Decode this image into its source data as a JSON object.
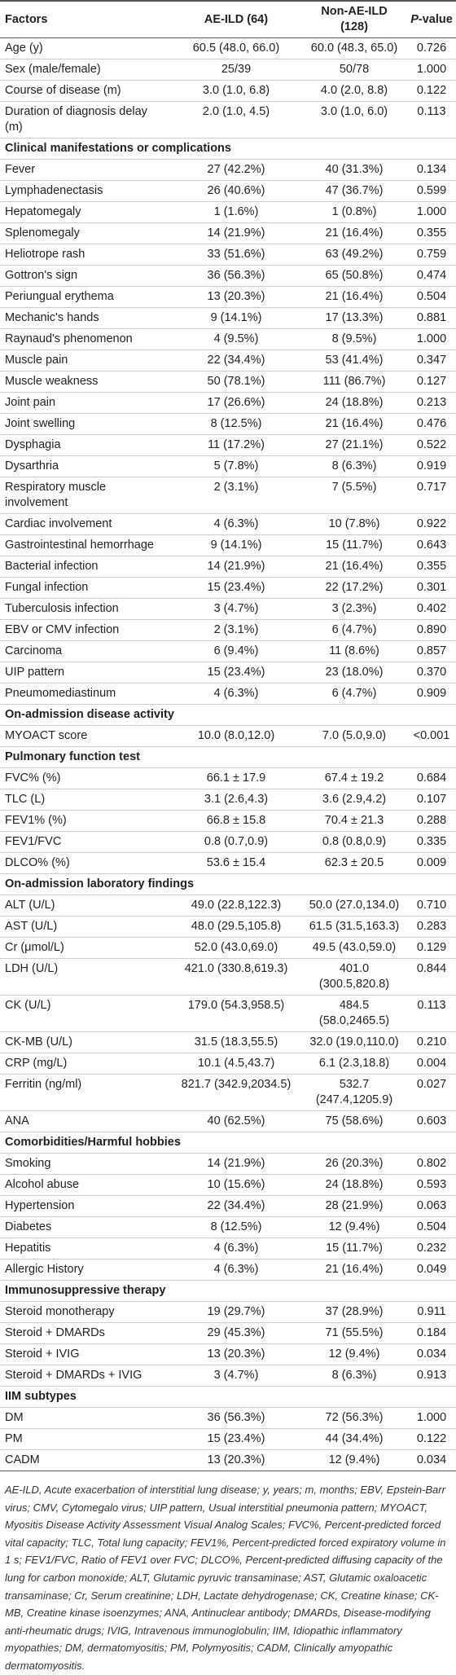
{
  "header": {
    "factors": "Factors",
    "ae": "AE-ILD (64)",
    "non_ae": "Non-AE-ILD (128)",
    "p": {
      "italic": "P",
      "rest": "-value"
    }
  },
  "sections": [
    {
      "title": null,
      "rows": [
        [
          "Age (y)",
          "60.5 (48.0, 66.0)",
          "60.0 (48.3, 65.0)",
          "0.726"
        ],
        [
          "Sex (male/female)",
          "25/39",
          "50/78",
          "1.000"
        ],
        [
          "Course of disease (m)",
          "3.0 (1.0, 6.8)",
          "4.0 (2.0, 8.8)",
          "0.122"
        ],
        [
          "Duration of diagnosis delay (m)",
          "2.0 (1.0, 4.5)",
          "3.0 (1.0, 6.0)",
          "0.113"
        ]
      ]
    },
    {
      "title": "Clinical manifestations or complications",
      "rows": [
        [
          "Fever",
          "27 (42.2%)",
          "40 (31.3%)",
          "0.134"
        ],
        [
          "Lymphadenectasis",
          "26 (40.6%)",
          "47 (36.7%)",
          "0.599"
        ],
        [
          "Hepatomegaly",
          "1 (1.6%)",
          "1 (0.8%)",
          "1.000"
        ],
        [
          "Splenomegaly",
          "14 (21.9%)",
          "21 (16.4%)",
          "0.355"
        ],
        [
          "Heliotrope rash",
          "33 (51.6%)",
          "63 (49.2%)",
          "0.759"
        ],
        [
          "Gottron's sign",
          "36 (56.3%)",
          "65 (50.8%)",
          "0.474"
        ],
        [
          "Periungual erythema",
          "13 (20.3%)",
          "21 (16.4%)",
          "0.504"
        ],
        [
          "Mechanic's hands",
          "9 (14.1%)",
          "17 (13.3%)",
          "0.881"
        ],
        [
          "Raynaud's phenomenon",
          "4 (9.5%)",
          "8 (9.5%)",
          "1.000"
        ],
        [
          "Muscle pain",
          "22 (34.4%)",
          "53 (41.4%)",
          "0.347"
        ],
        [
          "Muscle weakness",
          "50 (78.1%)",
          "111 (86.7%)",
          "0.127"
        ],
        [
          "Joint pain",
          "17 (26.6%)",
          "24 (18.8%)",
          "0.213"
        ],
        [
          "Joint swelling",
          "8 (12.5%)",
          "21 (16.4%)",
          "0.476"
        ],
        [
          "Dysphagia",
          "11 (17.2%)",
          "27 (21.1%)",
          "0.522"
        ],
        [
          "Dysarthria",
          "5 (7.8%)",
          "8 (6.3%)",
          "0.919"
        ],
        [
          "Respiratory muscle involvement",
          "2 (3.1%)",
          "7 (5.5%)",
          "0.717"
        ],
        [
          "Cardiac involvement",
          "4 (6.3%)",
          "10 (7.8%)",
          "0.922"
        ],
        [
          "Gastrointestinal hemorrhage",
          "9 (14.1%)",
          "15 (11.7%)",
          "0.643"
        ],
        [
          "Bacterial infection",
          "14 (21.9%)",
          "21 (16.4%)",
          "0.355"
        ],
        [
          "Fungal infection",
          "15 (23.4%)",
          "22 (17.2%)",
          "0.301"
        ],
        [
          "Tuberculosis infection",
          "3 (4.7%)",
          "3 (2.3%)",
          "0.402"
        ],
        [
          "EBV or CMV infection",
          "2 (3.1%)",
          "6 (4.7%)",
          "0.890"
        ],
        [
          "Carcinoma",
          "6 (9.4%)",
          "11 (8.6%)",
          "0.857"
        ],
        [
          "UIP pattern",
          "15 (23.4%)",
          "23 (18.0%)",
          "0.370"
        ],
        [
          "Pneumomediastinum",
          "4 (6.3%)",
          "6 (4.7%)",
          "0.909"
        ]
      ]
    },
    {
      "title": "On-admission disease activity",
      "rows": [
        [
          "MYOACT score",
          "10.0 (8.0,12.0)",
          "7.0 (5.0,9.0)",
          "<0.001"
        ]
      ]
    },
    {
      "title": "Pulmonary function test",
      "rows": [
        [
          "FVC% (%)",
          "66.1 ± 17.9",
          "67.4 ± 19.2",
          "0.684"
        ],
        [
          "TLC (L)",
          "3.1 (2.6,4.3)",
          "3.6 (2.9,4.2)",
          "0.107"
        ],
        [
          "FEV1% (%)",
          "66.8 ± 15.8",
          "70.4 ± 21.3",
          "0.288"
        ],
        [
          "FEV1/FVC",
          "0.8 (0.7,0.9)",
          "0.8 (0.8,0.9)",
          "0.335"
        ],
        [
          "DLCO% (%)",
          "53.6 ± 15.4",
          "62.3 ± 20.5",
          "0.009"
        ]
      ]
    },
    {
      "title": "On-admission laboratory findings",
      "rows": [
        [
          "ALT (U/L)",
          "49.0 (22.8,122.3)",
          "50.0 (27.0,134.0)",
          "0.710"
        ],
        [
          "AST (U/L)",
          "48.0 (29.5,105.8)",
          "61.5 (31.5,163.3)",
          "0.283"
        ],
        [
          "Cr (μmol/L)",
          "52.0 (43.0,69.0)",
          "49.5 (43.0,59.0)",
          "0.129"
        ],
        [
          "LDH (U/L)",
          "421.0 (330.8,619.3)",
          "401.0 (300.5,820.8)",
          "0.844"
        ],
        [
          "CK (U/L)",
          "179.0 (54.3,958.5)",
          "484.5 (58.0,2465.5)",
          "0.113"
        ],
        [
          "CK-MB (U/L)",
          "31.5 (18.3,55.5)",
          "32.0 (19.0,110.0)",
          "0.210"
        ],
        [
          "CRP (mg/L)",
          "10.1 (4.5,43.7)",
          "6.1 (2.3,18.8)",
          "0.004"
        ],
        [
          "Ferritin (ng/ml)",
          "821.7 (342.9,2034.5)",
          "532.7 (247.4,1205.9)",
          "0.027"
        ],
        [
          "ANA",
          "40 (62.5%)",
          "75 (58.6%)",
          "0.603"
        ]
      ]
    },
    {
      "title": "Comorbidities/Harmful hobbies",
      "rows": [
        [
          "Smoking",
          "14 (21.9%)",
          "26 (20.3%)",
          "0.802"
        ],
        [
          "Alcohol abuse",
          "10 (15.6%)",
          "24 (18.8%)",
          "0.593"
        ],
        [
          "Hypertension",
          "22 (34.4%)",
          "28 (21.9%)",
          "0.063"
        ],
        [
          "Diabetes",
          "8 (12.5%)",
          "12 (9.4%)",
          "0.504"
        ],
        [
          "Hepatitis",
          "4 (6.3%)",
          "15 (11.7%)",
          "0.232"
        ],
        [
          "Allergic History",
          "4 (6.3%)",
          "21 (16.4%)",
          "0.049"
        ]
      ]
    },
    {
      "title": "Immunosuppressive therapy",
      "rows": [
        [
          "Steroid monotherapy",
          "19 (29.7%)",
          "37 (28.9%)",
          "0.911"
        ],
        [
          "Steroid + DMARDs",
          "29 (45.3%)",
          "71 (55.5%)",
          "0.184"
        ],
        [
          "Steroid + IVIG",
          "13 (20.3%)",
          "12 (9.4%)",
          "0.034"
        ],
        [
          "Steroid + DMARDs + IVIG",
          "3 (4.7%)",
          "8 (6.3%)",
          "0.913"
        ]
      ]
    },
    {
      "title": "IIM subtypes",
      "rows": [
        [
          "DM",
          "36 (56.3%)",
          "72 (56.3%)",
          "1.000"
        ],
        [
          "PM",
          "15 (23.4%)",
          "44 (34.4%)",
          "0.122"
        ],
        [
          "CADM",
          "13 (20.3%)",
          "12 (9.4%)",
          "0.034"
        ]
      ]
    }
  ],
  "footnote": "AE-ILD, Acute exacerbation of interstitial lung disease; y, years; m, months; EBV, Epstein-Barr virus; CMV, Cytomegalo virus; UIP pattern, Usual interstitial pneumonia pattern; MYOACT, Myositis Disease Activity Assessment Visual Analog Scales; FVC%, Percent-predicted forced vital capacity; TLC, Total lung capacity; FEV1%, Percent-predicted forced expiratory volume in 1 s; FEV1/FVC, Ratio of FEV1 over FVC; DLCO%, Percent-predicted diffusing capacity of the lung for carbon monoxide; ALT, Glutamic pyruvic transaminase; AST, Glutamic oxaloacetic transaminase; Cr, Serum creatinine; LDH, Lactate dehydrogenase; CK, Creatine kinase; CK-MB, Creatine kinase isoenzymes; ANA, Antinuclear antibody; DMARDs, Disease-modifying anti-rheumatic drugs; IVIG, Intravenous immunoglobulin; IIM, Idiopathic inflammatory myopathies; DM, dermatomyositis; PM, Polymyositis; CADM, Clinically amyopathic dermatomyositis."
}
